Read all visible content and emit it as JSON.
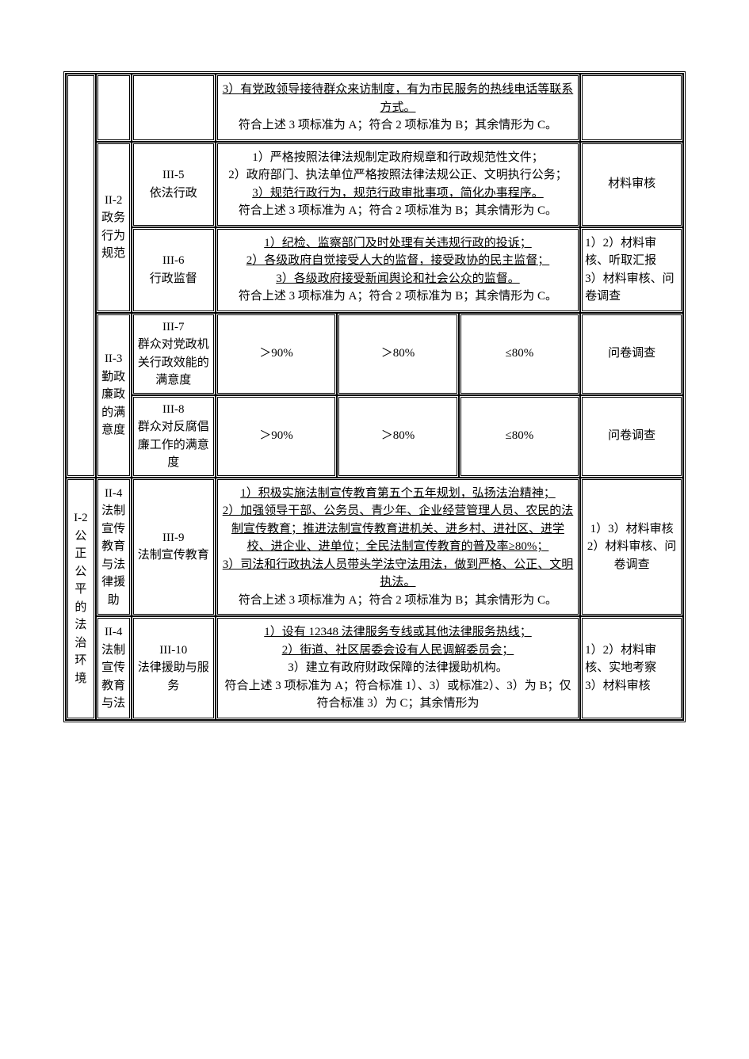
{
  "colors": {
    "background": "#ffffff",
    "text": "#000000",
    "border": "#000000"
  },
  "fonts": {
    "body_family": "SimSun",
    "body_size_pt": 11
  },
  "table": {
    "type": "table",
    "columns": [
      "一级指标",
      "二级指标",
      "三级指标",
      "评分标准",
      "考核方式"
    ],
    "border_style": "double",
    "rows": [
      {
        "level1": "",
        "level2": "",
        "level3": "",
        "criteria_item3": "3）有党政领导接待群众来访制度，有为市民服务的热线电话等联系方式。",
        "criteria_footer": "符合上述 3 项标准为 A；符合 2 项标准为 B；其余情形为 C。",
        "method": ""
      },
      {
        "level2_code": "II-2",
        "level2_name": "政务行为规范",
        "level3_code": "III-5",
        "level3_name": "依法行政",
        "criteria_item1": "1）严格按照法律法规制定政府规章和行政规范性文件；",
        "criteria_item2": "2）政府部门、执法单位严格按照法律法规公正、文明执行公务；",
        "criteria_item3": "3）规范行政行为，规范行政审批事项，简化办事程序。",
        "criteria_footer": "符合上述 3 项标准为 A；符合 2 项标准为 B；其余情形为 C。",
        "method": "材料审核"
      },
      {
        "level3_code": "III-6",
        "level3_name": "行政监督",
        "criteria_item1": "1）纪检、监察部门及时处理有关违规行政的投诉；",
        "criteria_item2": "2）各级政府自觉接受人大的监督，接受政协的民主监督；",
        "criteria_item3": "3）各级政府接受新闻舆论和社会公众的监督。",
        "criteria_footer": "符合上述 3 项标准为 A；符合 2 项标准为 B；其余情形为 C。",
        "method": "1）2）材料审核、听取汇报\n3）材料审核、问卷调查"
      },
      {
        "level2_code": "II-3",
        "level2_name": "勤政廉政的满意度",
        "level3_code": "III-7",
        "level3_name": "群众对党政机关行政效能的满意度",
        "criteria_a": "＞90%",
        "criteria_b": "＞80%",
        "criteria_c": "≤80%",
        "method": "问卷调查"
      },
      {
        "level3_code": "III-8",
        "level3_name": "群众对反腐倡廉工作的满意度",
        "criteria_a": "＞90%",
        "criteria_b": "＞80%",
        "criteria_c": "≤80%",
        "method": "问卷调查"
      },
      {
        "level1_code": "I-2",
        "level1_name": "公正公平的法治环境",
        "level2_code": "II-4",
        "level2_name": "法制宣传教育与法律援助",
        "level3_code": "III-9",
        "level3_name": "法制宣传教育",
        "criteria_item1": "1）积极实施法制宣传教育第五个五年规划，弘扬法治精神；",
        "criteria_item2": "2）加强领导干部、公务员、青少年、企业经营管理人员、农民的法制宣传教育；推进法制宣传教育进机关、进乡村、进社区、进学校、进企业、进单位；全民法制宣传教育的普及率≥80%；",
        "criteria_item3": "3）司法和行政执法人员带头学法守法用法，做到严格、公正、文明执法。",
        "criteria_footer": "符合上述 3 项标准为 A；符合 2 项标准为 B；其余情形为 C。",
        "method": "1）3）材料审核\n2）材料审核、问卷调查"
      },
      {
        "level2_code": "II-4",
        "level2_name": "法制宣传教育与法",
        "level3_code": "III-10",
        "level3_name": "法律援助与服务",
        "criteria_item1": "1）设有 12348 法律服务专线或其他法律服务热线；",
        "criteria_item2": "2）街道、社区居委会设有人民调解委员会；",
        "criteria_item3": "3）建立有政府财政保障的法律援助机构。",
        "criteria_footer": "符合上述 3 项标准为 A；符合标准 1）、3）或标准2）、3）为 B；仅符合标准 3）为 C；其余情形为",
        "method": "1）2）材料审核、实地考察\n3）材料审核"
      }
    ]
  }
}
